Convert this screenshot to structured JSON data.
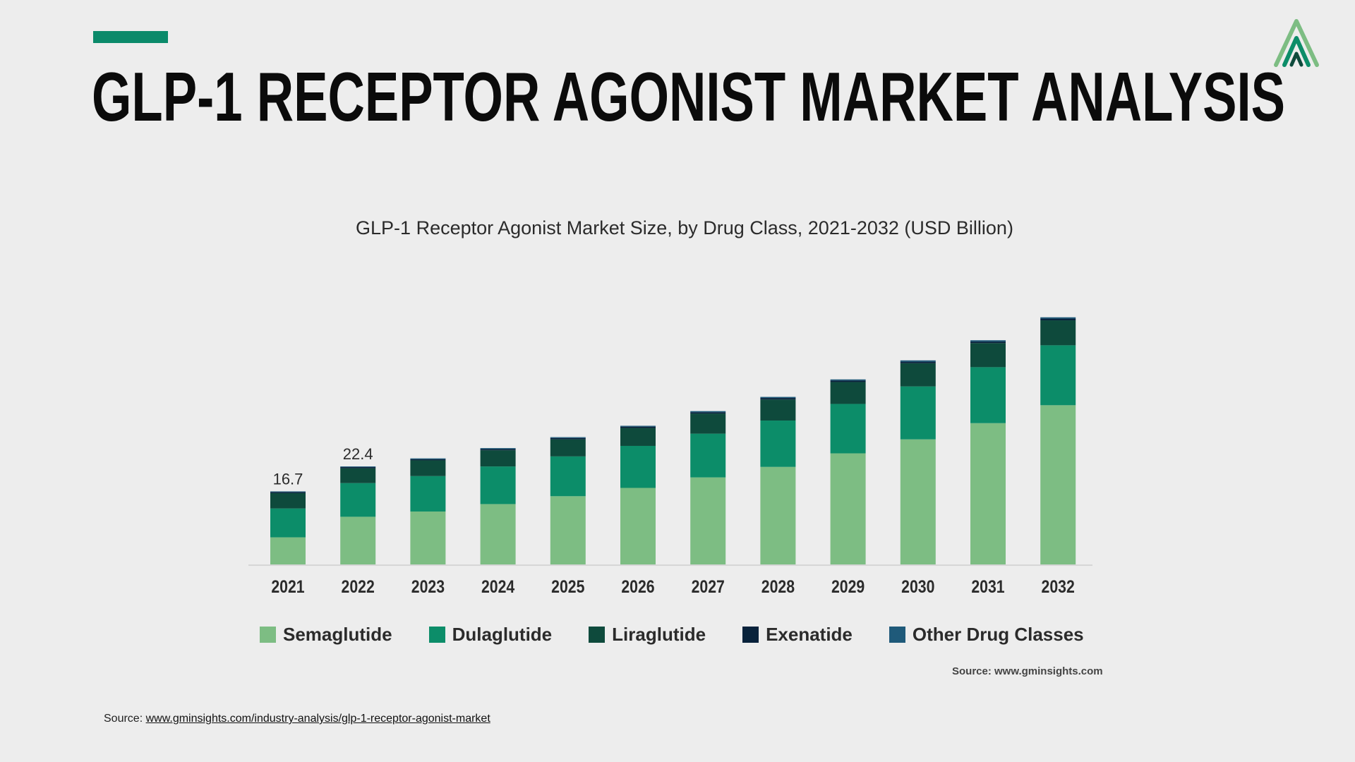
{
  "header": {
    "title": "GLP-1 RECEPTOR AGONIST MARKET ANALYSIS",
    "accent_color": "#0b8a6a"
  },
  "logo": {
    "icon": "stylized-a-logo-icon"
  },
  "chart_data": {
    "type": "bar",
    "stacked": true,
    "title": "GLP-1 Receptor Agonist Market Size, by Drug Class, 2021-2032 (USD Billion)",
    "xlabel": "",
    "ylabel": "",
    "categories": [
      "2021",
      "2022",
      "2023",
      "2024",
      "2025",
      "2026",
      "2027",
      "2028",
      "2029",
      "2030",
      "2031",
      "2032"
    ],
    "series": [
      {
        "name": "Semaglutide",
        "color": "#7dbd83",
        "values": [
          6.2,
          10.9,
          12.1,
          13.8,
          15.6,
          17.5,
          19.9,
          22.3,
          25.4,
          28.6,
          32.3,
          36.4
        ]
      },
      {
        "name": "Dulaglutide",
        "color": "#0c8d69",
        "values": [
          6.6,
          7.7,
          8.1,
          8.6,
          9.1,
          9.6,
          10.0,
          10.6,
          11.3,
          12.1,
          12.8,
          13.7
        ]
      },
      {
        "name": "Liraglutide",
        "color": "#0e4a3c",
        "values": [
          3.5,
          3.4,
          3.6,
          3.7,
          3.9,
          4.1,
          4.6,
          4.8,
          5.0,
          5.3,
          5.5,
          5.7
        ]
      },
      {
        "name": "Exenatide",
        "color": "#08223b",
        "values": [
          0.25,
          0.25,
          0.25,
          0.3,
          0.3,
          0.3,
          0.3,
          0.35,
          0.35,
          0.35,
          0.35,
          0.4
        ]
      },
      {
        "name": "Other Drug Classes",
        "color": "#1f5a7a",
        "values": [
          0.15,
          0.15,
          0.2,
          0.2,
          0.2,
          0.2,
          0.25,
          0.25,
          0.25,
          0.3,
          0.3,
          0.3
        ]
      }
    ],
    "data_labels": [
      {
        "category": "2021",
        "text": "16.7"
      },
      {
        "category": "2022",
        "text": "22.4"
      }
    ],
    "ylim": [
      0,
      58
    ],
    "grid": false,
    "legend_position": "bottom"
  },
  "chart_source": "Source: www.gminsights.com",
  "footer": {
    "prefix": "Source:",
    "link_text": "www.gminsights.com/industry-analysis/glp-1-receptor-agonist-market"
  }
}
